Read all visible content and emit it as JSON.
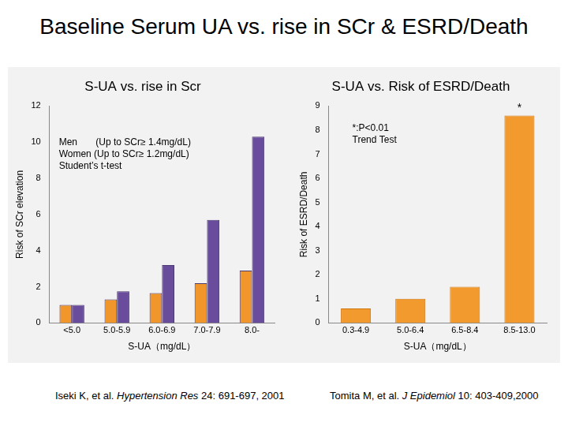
{
  "title": "Baseline Serum UA vs. rise in SCr & ESRD/Death",
  "chart_data": [
    {
      "type": "bar",
      "title": "S-UA vs. rise in Scr",
      "x_label": "S-UA（mg/dL）",
      "y_label": "Risk of SCr elevation",
      "categories": [
        "<5.0",
        "5.0-5.9",
        "6.0-6.9",
        "7.0-7.9",
        "8.0-"
      ],
      "series": [
        {
          "name": "Men",
          "color": "#f0962a",
          "values": [
            1.0,
            1.3,
            1.65,
            2.2,
            2.9
          ]
        },
        {
          "name": "Women",
          "color": "#6a4c9c",
          "values": [
            1.0,
            1.75,
            3.2,
            5.7,
            10.3
          ]
        }
      ],
      "ylim": [
        0,
        12
      ],
      "yticks": [
        0,
        2,
        4,
        6,
        8,
        10,
        12
      ],
      "grid": false,
      "annotations": [
        "Men       (Up to SCr≥ 1.4mg/dL)",
        "Women (Up to SCr≥ 1.2mg/dL)",
        "Student’s t-test"
      ]
    },
    {
      "type": "bar",
      "title": "S-UA vs. Risk of ESRD/Death",
      "x_label": "S-UA（mg/dL）",
      "y_label": "Risk of ESRD/Death",
      "categories": [
        "0.3-4.9",
        "5.0-6.4",
        "6.5-8.4",
        "8.5-13.0"
      ],
      "values": [
        0.6,
        1.0,
        1.5,
        8.6
      ],
      "color": "#f29a2e",
      "ylim": [
        0,
        9
      ],
      "yticks": [
        0,
        1,
        2,
        3,
        4,
        5,
        6,
        7,
        8,
        9
      ],
      "grid": false,
      "annotations": [
        "*:P<0.01",
        "Trend Test"
      ],
      "bar_marks": [
        {
          "category": "8.5-13.0",
          "text": "*"
        }
      ]
    }
  ],
  "citations": [
    {
      "authors": "Iseki K, et al.",
      "journal": "Hypertension Res",
      "details": "24: 691-697, 2001"
    },
    {
      "authors": "Tomita M, et al.",
      "journal": "J Epidemiol",
      "details": "10: 403-409,2000"
    }
  ]
}
